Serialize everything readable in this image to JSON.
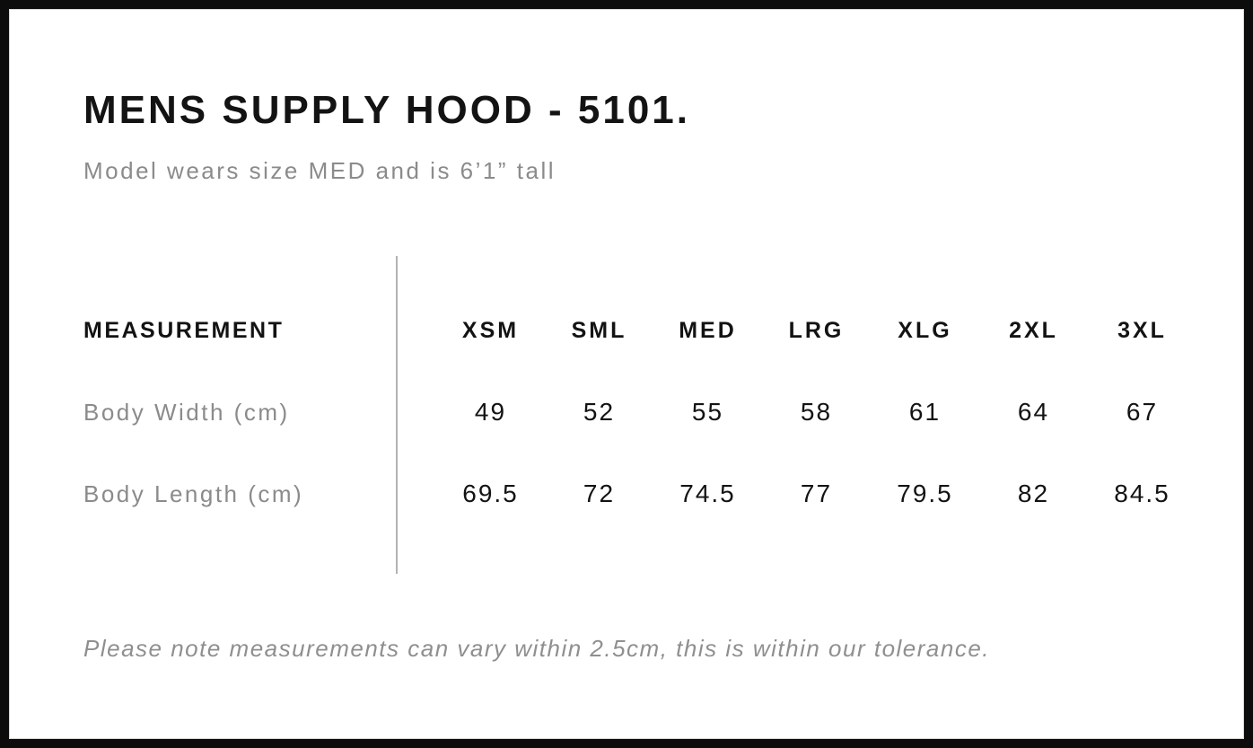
{
  "page": {
    "title": "MENS SUPPLY HOOD - 5101.",
    "subtitle": "Model wears size MED and is 6’1” tall",
    "tolerance_note": "Please note measurements can vary within 2.5cm, this is within our tolerance."
  },
  "size_chart": {
    "measurement_header": "MEASUREMENT",
    "sizes": [
      "XSM",
      "SML",
      "MED",
      "LRG",
      "XLG",
      "2XL",
      "3XL"
    ],
    "rows": [
      {
        "label": "Body Width (cm)",
        "values": [
          "49",
          "52",
          "55",
          "58",
          "61",
          "64",
          "67"
        ]
      },
      {
        "label": "Body Length (cm)",
        "values": [
          "69.5",
          "72",
          "74.5",
          "77",
          "79.5",
          "82",
          "84.5"
        ]
      }
    ]
  },
  "colors": {
    "text_primary": "#131313",
    "text_muted": "#8b8b8b",
    "divider": "#b3b3b3",
    "frame_border": "#0c0c0c"
  }
}
